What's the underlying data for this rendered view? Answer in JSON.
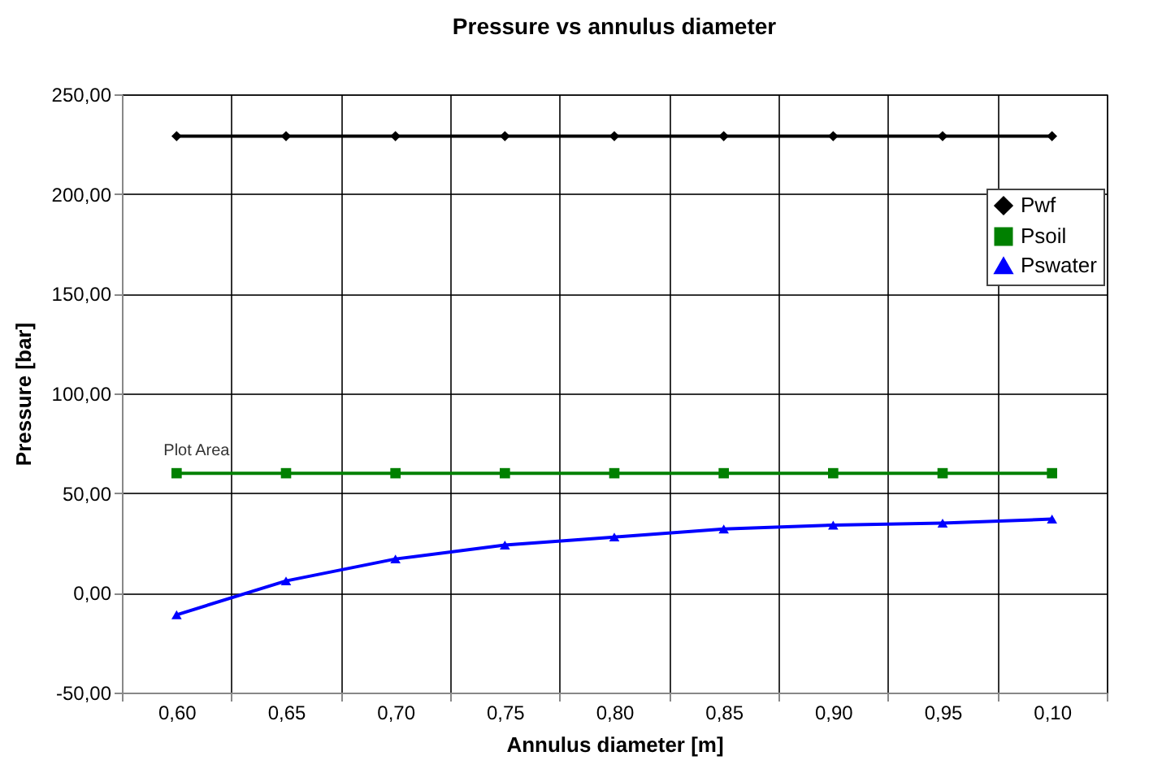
{
  "chart_data": {
    "type": "line",
    "title": "Pressure vs annulus diameter",
    "xlabel": "Annulus diameter [m]",
    "ylabel": "Pressure [bar]",
    "categories": [
      "0,60",
      "0,65",
      "0,70",
      "0,75",
      "0,80",
      "0,85",
      "0,90",
      "0,95",
      "0,10"
    ],
    "series": [
      {
        "name": "Pwf",
        "color": "#000000",
        "marker": "diamond",
        "values": [
          229,
          229,
          229,
          229,
          229,
          229,
          229,
          229,
          229
        ]
      },
      {
        "name": "Psoil",
        "color": "#008000",
        "marker": "square",
        "values": [
          60,
          60,
          60,
          60,
          60,
          60,
          60,
          60,
          60
        ]
      },
      {
        "name": "Pswater",
        "color": "#0000ff",
        "marker": "triangle",
        "values": [
          -11,
          6,
          17,
          24,
          28,
          32,
          34,
          35,
          37
        ]
      }
    ],
    "ylim": [
      -50,
      250
    ],
    "yticks": [
      {
        "value": -50,
        "label": "-50,00"
      },
      {
        "value": 0,
        "label": "0,00"
      },
      {
        "value": 50,
        "label": "50,00"
      },
      {
        "value": 100,
        "label": "100,00"
      },
      {
        "value": 150,
        "label": "150,00"
      },
      {
        "value": 200,
        "label": "200,00"
      },
      {
        "value": 250,
        "label": "250,00"
      }
    ],
    "grid": true,
    "legend": "top right",
    "annotations": [
      {
        "text": "Plot Area",
        "x": "0,60",
        "y": 60
      }
    ]
  }
}
